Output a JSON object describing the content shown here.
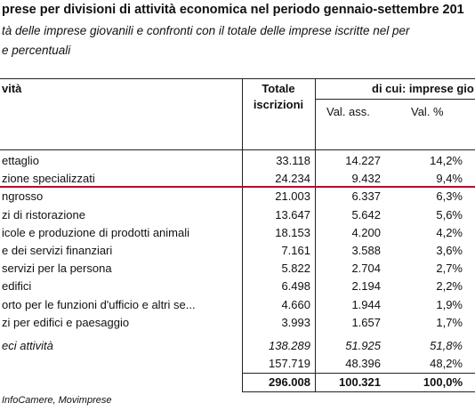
{
  "title": "prese per divisioni di attività economica nel periodo gennaio-settembre 201",
  "subtitle_line1": "tà delle imprese giovanili e confronti con il totale delle imprese iscritte nel per",
  "subtitle_line2": "e percentuali",
  "columns": {
    "activity": "vità",
    "total_line1": "Totale",
    "total_line2": "iscrizioni",
    "group": "di cui: imprese gio",
    "val_ass": "Val. ass.",
    "val_pct": "Val. %"
  },
  "rows": [
    {
      "label": "ettaglio",
      "total": "33.118",
      "abs": "14.227",
      "pct": "14,2%"
    },
    {
      "label": "zione specializzati",
      "total": "24.234",
      "abs": "9.432",
      "pct": "9,4%"
    },
    {
      "label": "ngrosso",
      "total": "21.003",
      "abs": "6.337",
      "pct": "6,3%"
    },
    {
      "label": "zi di ristorazione",
      "total": "13.647",
      "abs": "5.642",
      "pct": "5,6%"
    },
    {
      "label": "icole e produzione di prodotti animali",
      "total": "18.153",
      "abs": "4.200",
      "pct": "4,2%"
    },
    {
      "label": "e dei servizi finanziari",
      "total": "7.161",
      "abs": "3.588",
      "pct": "3,6%"
    },
    {
      "label": "servizi per la persona",
      "total": "5.822",
      "abs": "2.704",
      "pct": "2,7%"
    },
    {
      "label": "edifici",
      "total": "6.498",
      "abs": "2.194",
      "pct": "2,2%"
    },
    {
      "label": "orto per le funzioni d'ufficio e altri se...",
      "total": "4.660",
      "abs": "1.944",
      "pct": "1,9%"
    },
    {
      "label": "zi per edifici e paesaggio",
      "total": "3.993",
      "abs": "1.657",
      "pct": "1,7%"
    }
  ],
  "summary_top10": {
    "label": "eci attività",
    "total": "138.289",
    "abs": "51.925",
    "pct": "51,8%"
  },
  "summary_other": {
    "label": "",
    "total": "157.719",
    "abs": "48.396",
    "pct": "48,2%"
  },
  "summary_total": {
    "label": "",
    "total": "296.008",
    "abs": "100.321",
    "pct": "100,0%"
  },
  "source": "InfoCamere, Movimprese"
}
